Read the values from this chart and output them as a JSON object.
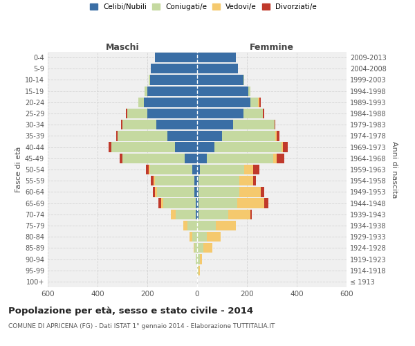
{
  "age_groups": [
    "100+",
    "95-99",
    "90-94",
    "85-89",
    "80-84",
    "75-79",
    "70-74",
    "65-69",
    "60-64",
    "55-59",
    "50-54",
    "45-49",
    "40-44",
    "35-39",
    "30-34",
    "25-29",
    "20-24",
    "15-19",
    "10-14",
    "5-9",
    "0-4"
  ],
  "birth_years": [
    "≤ 1913",
    "1914-1918",
    "1919-1923",
    "1924-1928",
    "1929-1933",
    "1934-1938",
    "1939-1943",
    "1944-1948",
    "1949-1953",
    "1954-1958",
    "1959-1963",
    "1964-1968",
    "1969-1973",
    "1974-1978",
    "1979-1983",
    "1984-1988",
    "1989-1993",
    "1994-1998",
    "1999-2003",
    "2004-2008",
    "2009-2013"
  ],
  "males": {
    "celibi": [
      0,
      0,
      0,
      0,
      0,
      0,
      5,
      5,
      10,
      10,
      20,
      50,
      90,
      120,
      165,
      200,
      215,
      200,
      190,
      185,
      170
    ],
    "coniugati": [
      0,
      0,
      5,
      10,
      20,
      40,
      80,
      130,
      150,
      160,
      170,
      250,
      255,
      200,
      135,
      80,
      20,
      10,
      5,
      0,
      0
    ],
    "vedovi": [
      0,
      0,
      0,
      5,
      10,
      15,
      20,
      10,
      10,
      5,
      5,
      0,
      0,
      0,
      0,
      0,
      0,
      0,
      0,
      0,
      0
    ],
    "divorziati": [
      0,
      0,
      0,
      0,
      0,
      0,
      0,
      10,
      8,
      10,
      10,
      10,
      10,
      5,
      5,
      5,
      0,
      0,
      0,
      0,
      0
    ]
  },
  "females": {
    "nubili": [
      0,
      0,
      0,
      0,
      0,
      0,
      5,
      5,
      5,
      5,
      10,
      40,
      70,
      100,
      145,
      185,
      215,
      205,
      185,
      165,
      155
    ],
    "coniugate": [
      0,
      5,
      10,
      25,
      40,
      75,
      120,
      155,
      165,
      165,
      180,
      265,
      270,
      215,
      165,
      80,
      30,
      10,
      5,
      0,
      0
    ],
    "vedove": [
      0,
      5,
      10,
      35,
      55,
      80,
      90,
      110,
      85,
      55,
      35,
      15,
      5,
      5,
      0,
      0,
      5,
      0,
      0,
      0,
      0
    ],
    "divorziate": [
      0,
      0,
      0,
      0,
      0,
      0,
      5,
      15,
      15,
      10,
      25,
      30,
      20,
      10,
      5,
      5,
      5,
      0,
      0,
      0,
      0
    ]
  },
  "colors": {
    "celibi_nubili": "#3a6ea5",
    "coniugati": "#c5d9a0",
    "vedovi": "#f5c96e",
    "divorziati": "#c0392b"
  },
  "xlim": 600,
  "title": "Popolazione per età, sesso e stato civile - 2014",
  "subtitle": "COMUNE DI APRICENA (FG) - Dati ISTAT 1° gennaio 2014 - Elaborazione TUTTITALIA.IT",
  "ylabel_left": "Fasce di età",
  "ylabel_right": "Anni di nascita",
  "xlabel_left": "Maschi",
  "xlabel_right": "Femmine",
  "bg_color": "#f0f0f0",
  "grid_color": "#cccccc"
}
